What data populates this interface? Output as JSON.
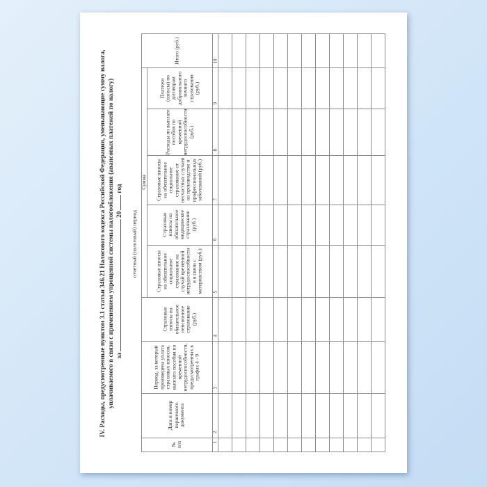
{
  "title": {
    "line1": "IV. Расходы, предусмотренные пунктом 3.1 статьи 346.21 Налогового кодекса Российской Федерации, уменьшающие сумму налога,",
    "line2": "уплачиваемого в связи с применением упрощенной системы налогообложения (авансовых платежей по налогу)",
    "period_prefix": "за",
    "period_year_prefix": "20",
    "period_suffix": "год",
    "period_caption": "отчетный (налоговый) период"
  },
  "table": {
    "group_header": "Сумма",
    "columns": [
      {
        "number": "1",
        "label": "№ п/п"
      },
      {
        "number": "2",
        "label": "Дата и номер первичного документа"
      },
      {
        "number": "3",
        "label": "Период, за который произведена уплата страховых взносов, выплата пособия по временной нетрудоспособности, предусмотренных в графах 4 - 9"
      },
      {
        "number": "4",
        "label": "Страховые взносы на обязательное пенсионное страхование (руб.)"
      },
      {
        "number": "5",
        "label": "Страховые взносы на обязательное социальное страхование на случай временной нетрудоспособности и в связи с материнством (руб.)"
      },
      {
        "number": "6",
        "label": "Страховые взносы на обязательное медицинское страхование (руб.)"
      },
      {
        "number": "7",
        "label": "Страховые взносы на обязательное социальное страхование от несчастных случаев на производстве и профессиональных заболеваний (руб.)"
      },
      {
        "number": "8",
        "label": "Расходы по выплате пособия по временной нетрудоспособности (руб.)"
      },
      {
        "number": "9",
        "label": "Платежи (взносы) по договорам добровольного личного страхования (руб.)"
      },
      {
        "number": "10",
        "label": "Итого (руб.)"
      }
    ],
    "empty_rows": 12
  },
  "colors": {
    "background": "#cfe4f7",
    "page": "#ffffff",
    "lines": "#8a8a8a"
  }
}
